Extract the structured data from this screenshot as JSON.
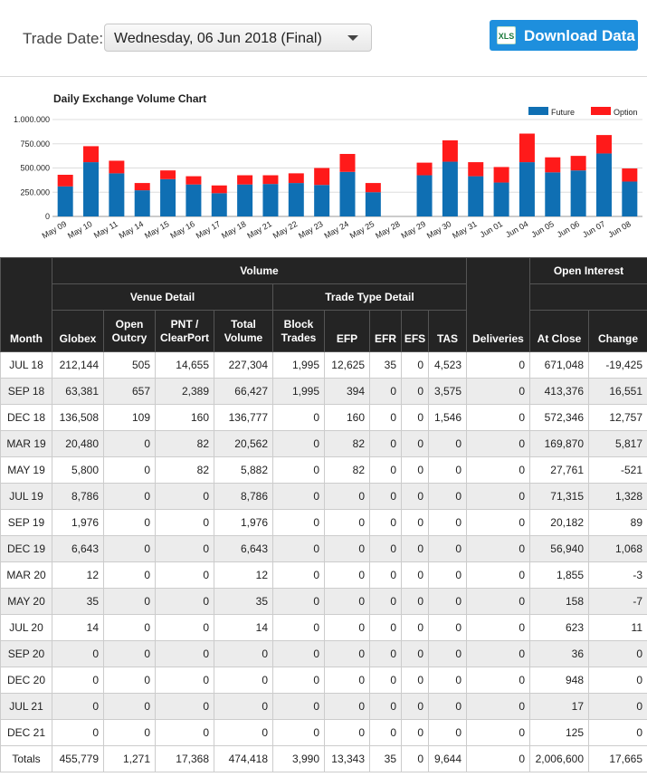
{
  "header": {
    "trade_date_label": "Trade Date:",
    "trade_date_value": "Wednesday, 06 Jun 2018 (Final)",
    "download_label": "Download Data",
    "download_icon": "XLS"
  },
  "chart_data": {
    "type": "bar",
    "stacked": true,
    "title": "Daily Exchange Volume Chart",
    "categories": [
      "May 09",
      "May 10",
      "May 11",
      "May 14",
      "May 15",
      "May 16",
      "May 17",
      "May 18",
      "May 21",
      "May 22",
      "May 23",
      "May 24",
      "May 25",
      "May 28",
      "May 29",
      "May 30",
      "May 31",
      "Jun 01",
      "Jun 04",
      "Jun 05",
      "Jun 06",
      "Jun 07",
      "Jun 08"
    ],
    "series": [
      {
        "name": "Future",
        "color": "#0f6fb3",
        "values": [
          310000,
          560000,
          445000,
          270000,
          385000,
          330000,
          240000,
          330000,
          335000,
          345000,
          325000,
          460000,
          250000,
          0,
          425000,
          565000,
          415000,
          350000,
          560000,
          455000,
          475000,
          650000,
          360000
        ]
      },
      {
        "name": "Option",
        "color": "#ff1a1a",
        "values": [
          120000,
          165000,
          130000,
          75000,
          90000,
          85000,
          80000,
          95000,
          90000,
          100000,
          175000,
          185000,
          95000,
          0,
          130000,
          220000,
          145000,
          160000,
          295000,
          155000,
          150000,
          190000,
          135000
        ]
      }
    ],
    "yticks": [
      "0",
      "250.000",
      "500.000",
      "750.000",
      "1.000.000"
    ],
    "ylim": [
      0,
      1000000
    ],
    "grid": true,
    "legend": "top-right"
  },
  "table": {
    "group_volume": "Volume",
    "group_open_interest": "Open Interest",
    "group_venue": "Venue Detail",
    "group_trade_type": "Trade Type Detail",
    "col_month": "Month",
    "col_globex": "Globex",
    "col_open_outcry": [
      "Open",
      "Outcry"
    ],
    "col_pnt": [
      "PNT /",
      "ClearPort"
    ],
    "col_total_volume": [
      "Total",
      "Volume"
    ],
    "col_block": [
      "Block",
      "Trades"
    ],
    "col_efp": "EFP",
    "col_efr": "EFR",
    "col_efs": "EFS",
    "col_tas": "TAS",
    "col_deliveries": "Deliveries",
    "col_at_close": "At Close",
    "col_change": "Change",
    "rows": [
      [
        "JUL 18",
        "212,144",
        "505",
        "14,655",
        "227,304",
        "1,995",
        "12,625",
        "35",
        "0",
        "4,523",
        "0",
        "671,048",
        "-19,425"
      ],
      [
        "SEP 18",
        "63,381",
        "657",
        "2,389",
        "66,427",
        "1,995",
        "394",
        "0",
        "0",
        "3,575",
        "0",
        "413,376",
        "16,551"
      ],
      [
        "DEC 18",
        "136,508",
        "109",
        "160",
        "136,777",
        "0",
        "160",
        "0",
        "0",
        "1,546",
        "0",
        "572,346",
        "12,757"
      ],
      [
        "MAR 19",
        "20,480",
        "0",
        "82",
        "20,562",
        "0",
        "82",
        "0",
        "0",
        "0",
        "0",
        "169,870",
        "5,817"
      ],
      [
        "MAY 19",
        "5,800",
        "0",
        "82",
        "5,882",
        "0",
        "82",
        "0",
        "0",
        "0",
        "0",
        "27,761",
        "-521"
      ],
      [
        "JUL 19",
        "8,786",
        "0",
        "0",
        "8,786",
        "0",
        "0",
        "0",
        "0",
        "0",
        "0",
        "71,315",
        "1,328"
      ],
      [
        "SEP 19",
        "1,976",
        "0",
        "0",
        "1,976",
        "0",
        "0",
        "0",
        "0",
        "0",
        "0",
        "20,182",
        "89"
      ],
      [
        "DEC 19",
        "6,643",
        "0",
        "0",
        "6,643",
        "0",
        "0",
        "0",
        "0",
        "0",
        "0",
        "56,940",
        "1,068"
      ],
      [
        "MAR 20",
        "12",
        "0",
        "0",
        "12",
        "0",
        "0",
        "0",
        "0",
        "0",
        "0",
        "1,855",
        "-3"
      ],
      [
        "MAY 20",
        "35",
        "0",
        "0",
        "35",
        "0",
        "0",
        "0",
        "0",
        "0",
        "0",
        "158",
        "-7"
      ],
      [
        "JUL 20",
        "14",
        "0",
        "0",
        "14",
        "0",
        "0",
        "0",
        "0",
        "0",
        "0",
        "623",
        "11"
      ],
      [
        "SEP 20",
        "0",
        "0",
        "0",
        "0",
        "0",
        "0",
        "0",
        "0",
        "0",
        "0",
        "36",
        "0"
      ],
      [
        "DEC 20",
        "0",
        "0",
        "0",
        "0",
        "0",
        "0",
        "0",
        "0",
        "0",
        "0",
        "948",
        "0"
      ],
      [
        "JUL 21",
        "0",
        "0",
        "0",
        "0",
        "0",
        "0",
        "0",
        "0",
        "0",
        "0",
        "17",
        "0"
      ],
      [
        "DEC 21",
        "0",
        "0",
        "0",
        "0",
        "0",
        "0",
        "0",
        "0",
        "0",
        "0",
        "125",
        "0"
      ]
    ],
    "totals": [
      "Totals",
      "455,779",
      "1,271",
      "17,368",
      "474,418",
      "3,990",
      "13,343",
      "35",
      "0",
      "9,644",
      "0",
      "2,006,600",
      "17,665"
    ]
  }
}
